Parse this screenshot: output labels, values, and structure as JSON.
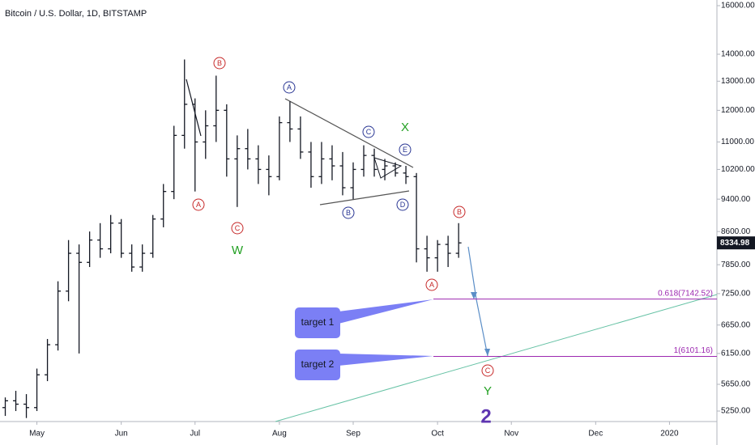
{
  "chart_data": {
    "type": "ohlc",
    "title": "Bitcoin / U.S. Dollar, 1D, BITSTAMP",
    "categories": [
      null,
      null,
      null,
      "May",
      null,
      null,
      null,
      null,
      null,
      null,
      null,
      "Jun",
      null,
      null,
      null,
      null,
      null,
      null,
      "Jul",
      null,
      null,
      null,
      null,
      null,
      null,
      null,
      "Aug",
      null,
      null,
      null,
      null,
      null,
      null,
      "Sep",
      null,
      null,
      null,
      null,
      null,
      null,
      null,
      "Oct",
      null,
      null,
      null,
      null,
      null,
      null,
      "Nov",
      null,
      null,
      null,
      null,
      null,
      null,
      null,
      "Dec",
      null,
      null,
      null,
      null,
      null,
      null,
      "2020",
      null,
      null,
      null,
      null
    ],
    "open": [
      5300,
      5400,
      5350,
      5300,
      5800,
      6300,
      7300,
      8100,
      7900,
      8400,
      8200,
      8800,
      8100,
      7800,
      8100,
      8900,
      9600,
      11200,
      12200,
      11000,
      11500,
      12000,
      10500,
      10800,
      10500,
      10200,
      10000,
      11600,
      11400,
      10700,
      10000,
      10500,
      10300,
      9700,
      10200,
      10600,
      10200,
      10300,
      10100,
      10000,
      8200,
      8000,
      8300,
      8100,
      null,
      null,
      null,
      null,
      null,
      null,
      null,
      null,
      null,
      null,
      null,
      null,
      null,
      null,
      null,
      null,
      null,
      null,
      null,
      null,
      null,
      null,
      null,
      null
    ],
    "high": [
      5450,
      5550,
      5500,
      5900,
      6400,
      7500,
      8400,
      8300,
      8600,
      8800,
      9000,
      8900,
      8300,
      8300,
      9000,
      9800,
      11500,
      13800,
      12400,
      12000,
      13200,
      12200,
      11200,
      11400,
      10900,
      10600,
      11800,
      12300,
      11800,
      11000,
      11000,
      10900,
      10700,
      10400,
      10900,
      10800,
      10500,
      10400,
      10300,
      10100,
      8500,
      8400,
      8500,
      8800,
      null,
      null,
      null,
      null,
      null,
      null,
      null,
      null,
      null,
      null,
      null,
      null,
      null,
      null,
      null,
      null,
      null,
      null,
      null,
      null,
      null,
      null,
      null,
      null
    ],
    "low": [
      5180,
      5250,
      5150,
      5250,
      5700,
      6200,
      7100,
      6150,
      7800,
      8000,
      8100,
      8000,
      7700,
      7700,
      8000,
      8700,
      9400,
      10800,
      9600,
      10500,
      11000,
      10000,
      9200,
      10200,
      9800,
      9500,
      9900,
      11000,
      10500,
      9700,
      9800,
      9900,
      9500,
      9400,
      10000,
      10000,
      9900,
      10000,
      9800,
      7900,
      7700,
      7700,
      7800,
      8000,
      null,
      null,
      null,
      null,
      null,
      null,
      null,
      null,
      null,
      null,
      null,
      null,
      null,
      null,
      null,
      null,
      null,
      null,
      null,
      null,
      null,
      null,
      null,
      null
    ],
    "close": [
      5400,
      5350,
      5300,
      5800,
      6300,
      7300,
      8100,
      7900,
      8400,
      8200,
      8800,
      8100,
      7800,
      8100,
      8900,
      9600,
      11200,
      12200,
      11000,
      11500,
      12000,
      10500,
      10800,
      10500,
      10200,
      10000,
      11600,
      11400,
      10700,
      10000,
      10500,
      10300,
      9700,
      10200,
      10600,
      10200,
      10300,
      10100,
      10000,
      8200,
      8000,
      8300,
      8100,
      8335,
      null,
      null,
      null,
      null,
      null,
      null,
      null,
      null,
      null,
      null,
      null,
      null,
      null,
      null,
      null,
      null,
      null,
      null,
      null,
      null,
      null,
      null,
      null,
      null
    ],
    "color": "#131722",
    "log_scale": true,
    "ylim": [
      5112,
      16251
    ],
    "yticks": [
      {
        "value": 16000,
        "label": "16000.00"
      },
      {
        "value": 14000,
        "label": "14000.00"
      },
      {
        "value": 13000,
        "label": "13000.00"
      },
      {
        "value": 12000,
        "label": "12000.00"
      },
      {
        "value": 11000,
        "label": "11000.00"
      },
      {
        "value": 10200,
        "label": "10200.00"
      },
      {
        "value": 9400,
        "label": "9400.00"
      },
      {
        "value": 8600,
        "label": "8600.00"
      },
      {
        "value": 7850,
        "label": "7850.00"
      },
      {
        "value": 7250,
        "label": "7250.00"
      },
      {
        "value": 6650,
        "label": "6650.00"
      },
      {
        "value": 6150,
        "label": "6150.00"
      },
      {
        "value": 5650,
        "label": "5650.00"
      },
      {
        "value": 5250,
        "label": "5250.00"
      }
    ],
    "last_price": 8334.98,
    "fib_levels": [
      {
        "label": "0.618(7142.52)",
        "value": 7142.52
      },
      {
        "label": "1(6101.16)",
        "value": 6101.16
      }
    ],
    "annotations": [
      "A",
      "B",
      "C",
      "W",
      "A",
      "B",
      "C",
      "D",
      "E",
      "X",
      "A",
      "B",
      "C",
      "Y",
      "2"
    ],
    "targets": [
      "target 1",
      "target 2"
    ]
  }
}
